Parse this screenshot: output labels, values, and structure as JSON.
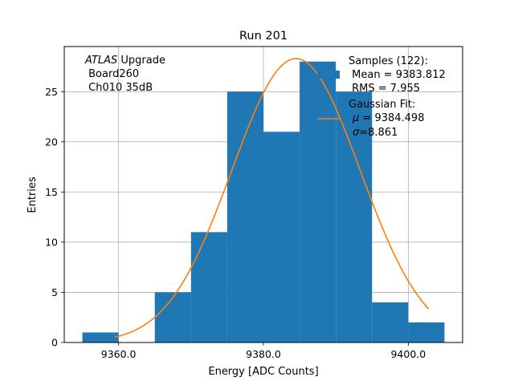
{
  "chart_data": {
    "type": "bar",
    "title": "Run 201",
    "xlabel": "Energy [ADC Counts]",
    "ylabel": "Entries",
    "xlim": [
      9352.5,
      9407.5
    ],
    "ylim": [
      0,
      29.5
    ],
    "grid": true,
    "xticks": [
      9360,
      9380,
      9400
    ],
    "xtick_labels": [
      "9360.0",
      "9380.0",
      "9400.0"
    ],
    "yticks": [
      0,
      5,
      10,
      15,
      20,
      25
    ],
    "ytick_labels": [
      "0",
      "5",
      "10",
      "15",
      "20",
      "25"
    ],
    "bin_edges": [
      9355,
      9360,
      9365,
      9370,
      9375,
      9380,
      9385,
      9390,
      9395,
      9400,
      9405
    ],
    "values": [
      1,
      0,
      5,
      11,
      25,
      21,
      28,
      25,
      4,
      2
    ],
    "bar_color": "#1f77b4",
    "fit": {
      "type": "gaussian",
      "amplitude": 28.3,
      "mu": 9384.498,
      "sigma": 8.861,
      "x_range": [
        9359.5,
        9402.8
      ],
      "color": "#ff7f0e"
    },
    "annotation": {
      "line1_italic": "ATLAS",
      "line1_rest": " Upgrade",
      "line2": " Board260",
      "line3": " Ch010 35dB"
    },
    "legend": {
      "placement": "top-right",
      "samples_title": "Samples (122):",
      "samples_mean": " Mean = 9383.812",
      "samples_rms": " RMS = 7.955",
      "fit_title": "Gaussian Fit:",
      "fit_mu_symbol": "μ",
      "fit_mu_rest": " = 9384.498",
      "fit_sigma_symbol": "σ",
      "fit_sigma_rest": "=8.861"
    }
  }
}
